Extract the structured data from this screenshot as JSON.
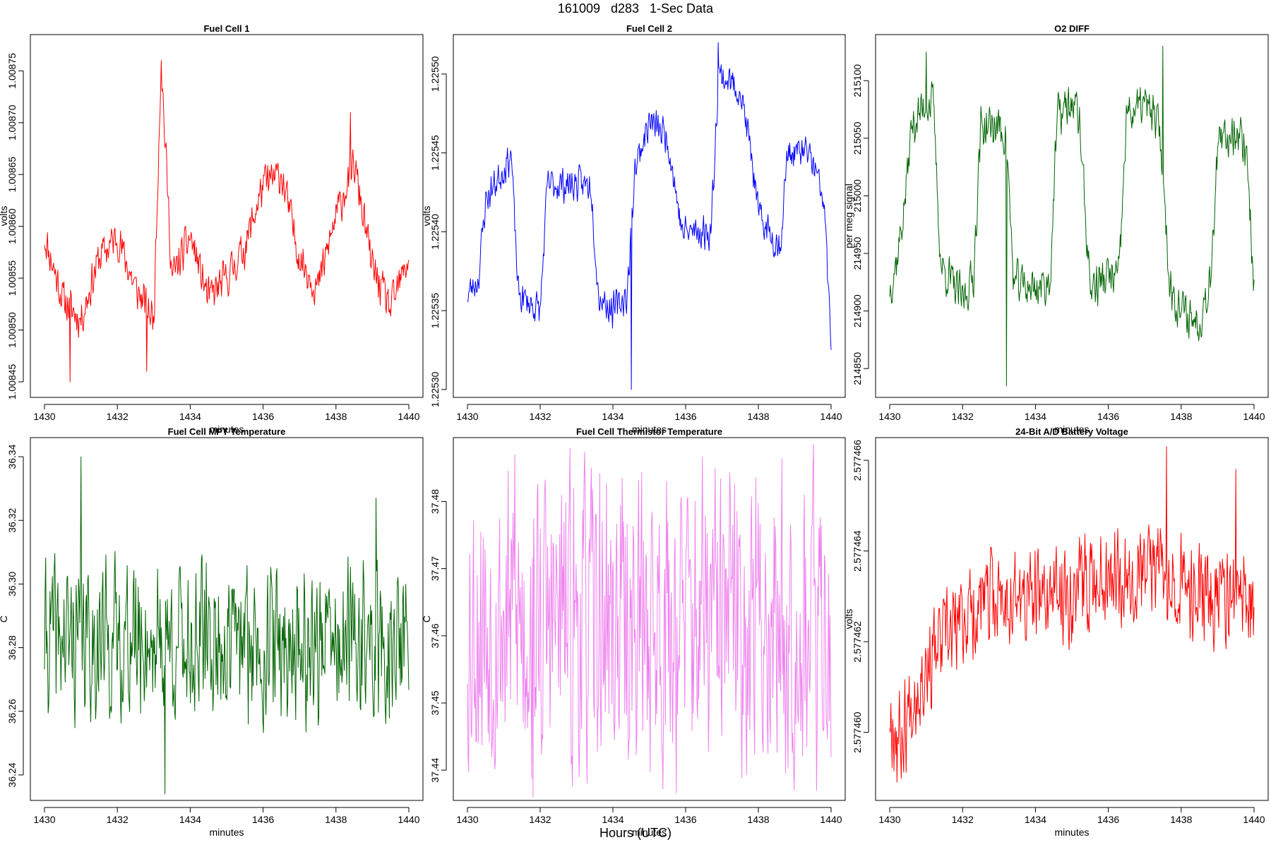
{
  "page": {
    "title": "161009   d283   1-Sec Data",
    "xaxis_label": "Hours (UTC)"
  },
  "chart_data": [
    {
      "type": "line",
      "title": "Fuel Cell 1",
      "xlabel": "minutes",
      "ylabel": "volts",
      "color": "#ff0000",
      "xlim": [
        1430,
        1440
      ],
      "ylim": [
        1.008435,
        1.008785
      ],
      "xticks": [
        1430,
        1432,
        1434,
        1436,
        1438,
        1440
      ],
      "ytick_labels": [
        "1.00845",
        "1.00850",
        "1.00855",
        "1.00860",
        "1.00865",
        "1.00870",
        "1.00875"
      ],
      "x": [
        1430.0,
        1430.5,
        1431.0,
        1431.5,
        1432.0,
        1432.5,
        1433.0,
        1433.2,
        1433.5,
        1434.0,
        1434.5,
        1435.0,
        1435.5,
        1436.0,
        1436.5,
        1437.0,
        1437.5,
        1438.0,
        1438.5,
        1439.0,
        1439.5,
        1440.0
      ],
      "values": [
        1.00859,
        1.00853,
        1.00851,
        1.00857,
        1.00859,
        1.00854,
        1.00851,
        1.00876,
        1.00855,
        1.00859,
        1.00853,
        1.00855,
        1.00858,
        1.00864,
        1.00865,
        1.00857,
        1.00854,
        1.00861,
        1.00866,
        1.00856,
        1.00852,
        1.00857
      ],
      "noise": 2.8e-05,
      "seed": 11,
      "spikes": [
        [
          1430.7,
          1.00845
        ],
        [
          1433.2,
          1.00876
        ],
        [
          1432.8,
          1.00846
        ],
        [
          1438.4,
          1.00871
        ]
      ]
    },
    {
      "type": "line",
      "title": "Fuel Cell 2",
      "xlabel": "minutes",
      "ylabel": "volts",
      "color": "#0000ff",
      "xlim": [
        1430,
        1440
      ],
      "ylim": [
        1.225295,
        1.225525
      ],
      "xticks": [
        1430,
        1432,
        1434,
        1436,
        1438,
        1440
      ],
      "ytick_labels": [
        "1.22530",
        "1.22535",
        "1.22540",
        "1.22545",
        "1.22550"
      ],
      "x": [
        1430.0,
        1430.3,
        1430.5,
        1431.0,
        1431.2,
        1431.4,
        1432.0,
        1432.2,
        1433.0,
        1433.4,
        1433.6,
        1434.0,
        1434.4,
        1434.6,
        1435.0,
        1435.5,
        1435.9,
        1436.2,
        1436.7,
        1436.9,
        1437.5,
        1437.8,
        1438.0,
        1438.6,
        1438.8,
        1439.4,
        1439.8,
        1440.0
      ],
      "values": [
        1.22536,
        1.22537,
        1.22542,
        1.22544,
        1.22545,
        1.22536,
        1.22535,
        1.22543,
        1.22543,
        1.22543,
        1.22536,
        1.22535,
        1.22536,
        1.22544,
        1.22547,
        1.22546,
        1.2254,
        1.2254,
        1.2254,
        1.2255,
        1.22549,
        1.22545,
        1.22541,
        1.22539,
        1.22545,
        1.22545,
        1.22542,
        1.22533
      ],
      "noise": 1.6e-05,
      "seed": 23,
      "spikes": [
        [
          1434.5,
          1.2253
        ],
        [
          1436.9,
          1.22552
        ]
      ]
    },
    {
      "type": "line",
      "title": "O2 DIFF",
      "xlabel": "minutes",
      "ylabel": "per meg signal",
      "color": "#006400",
      "xlim": [
        1430,
        1440
      ],
      "ylim": [
        214825,
        215140
      ],
      "xticks": [
        1430,
        1432,
        1434,
        1436,
        1438,
        1440
      ],
      "ytick_labels": [
        "214850",
        "214900",
        "214950",
        "215000",
        "215050",
        "215100"
      ],
      "x": [
        1430.0,
        1430.2,
        1430.4,
        1430.6,
        1431.0,
        1431.2,
        1431.4,
        1432.0,
        1432.3,
        1432.5,
        1433.0,
        1433.2,
        1433.4,
        1434.0,
        1434.4,
        1434.6,
        1435.0,
        1435.2,
        1435.5,
        1436.0,
        1436.3,
        1436.5,
        1437.0,
        1437.4,
        1437.7,
        1438.0,
        1438.5,
        1438.8,
        1439.0,
        1439.5,
        1439.8,
        1440.0
      ],
      "values": [
        214920,
        214945,
        214990,
        215060,
        215080,
        215080,
        214940,
        214910,
        214930,
        215060,
        215060,
        215050,
        214925,
        214920,
        214925,
        215070,
        215080,
        215070,
        214920,
        214930,
        214930,
        215070,
        215080,
        215060,
        214920,
        214900,
        214890,
        214930,
        215040,
        215060,
        215040,
        214920
      ],
      "noise": 28,
      "seed": 37,
      "spikes": [
        [
          1433.2,
          214835
        ],
        [
          1431.0,
          215125
        ],
        [
          1437.5,
          215130
        ]
      ]
    },
    {
      "type": "line",
      "title": "Fuel Cell MPT Temperature",
      "xlabel": "minutes",
      "ylabel": "C",
      "color": "#006400",
      "xlim": [
        1430,
        1440
      ],
      "ylim": [
        36.232,
        36.346
      ],
      "xticks": [
        1430,
        1432,
        1434,
        1436,
        1438,
        1440
      ],
      "ytick_labels": [
        "36.24",
        "36.26",
        "36.28",
        "36.30",
        "36.32",
        "36.34"
      ],
      "x": [
        1430.0,
        1440.0
      ],
      "values": [
        36.283,
        36.28
      ],
      "noise": 0.036,
      "seed": 41,
      "spikes": [
        [
          1431.0,
          36.34
        ],
        [
          1433.3,
          36.234
        ],
        [
          1439.1,
          36.327
        ]
      ]
    },
    {
      "type": "line",
      "title": "Fuel Cell Thermistor Temperature",
      "xlabel": "minutes",
      "ylabel": "C",
      "color": "#ee82ee",
      "xlim": [
        1430,
        1440
      ],
      "ylim": [
        37.4355,
        37.4895
      ],
      "xticks": [
        1430,
        1432,
        1434,
        1436,
        1438,
        1440
      ],
      "ytick_labels": [
        "37.44",
        "37.45",
        "37.46",
        "37.47",
        "37.48"
      ],
      "x": [
        1430.0,
        1440.0
      ],
      "values": [
        37.462,
        37.462
      ],
      "noise": 0.034,
      "seed": 53,
      "spikes": [
        [
          1431.3,
          37.487
        ],
        [
          1431.8,
          37.436
        ],
        [
          1439.6,
          37.437
        ]
      ]
    },
    {
      "type": "line",
      "title": "24-Bit A/D Battery Voltage",
      "xlabel": "minutes",
      "ylabel": "volts",
      "color": "#ff0000",
      "xlim": [
        1430,
        1440
      ],
      "ylim": [
        2.5774585,
        2.5774665
      ],
      "xticks": [
        1430,
        1432,
        1434,
        1436,
        1438,
        1440
      ],
      "ytick_labels": [
        "2.577460",
        "2.577462",
        "2.577464",
        "2.577466"
      ],
      "x": [
        1430.0,
        1430.3,
        1430.6,
        1431.0,
        1431.5,
        1432.0,
        1432.5,
        1433.0,
        1434.0,
        1435.0,
        1436.0,
        1437.0,
        1437.5,
        1438.0,
        1439.0,
        1440.0
      ],
      "values": [
        2.5774605,
        2.5774598,
        2.5774608,
        2.5774615,
        2.577462,
        2.5774625,
        2.5774628,
        2.577463,
        2.5774629,
        2.5774631,
        2.5774636,
        2.5774635,
        2.5774638,
        2.5774632,
        2.577463,
        2.5774628
      ],
      "noise": 1.6e-06,
      "seed": 67,
      "spikes": [
        [
          1430.2,
          2.5774589
        ],
        [
          1437.6,
          2.5774663
        ],
        [
          1439.5,
          2.5774658
        ]
      ]
    }
  ]
}
